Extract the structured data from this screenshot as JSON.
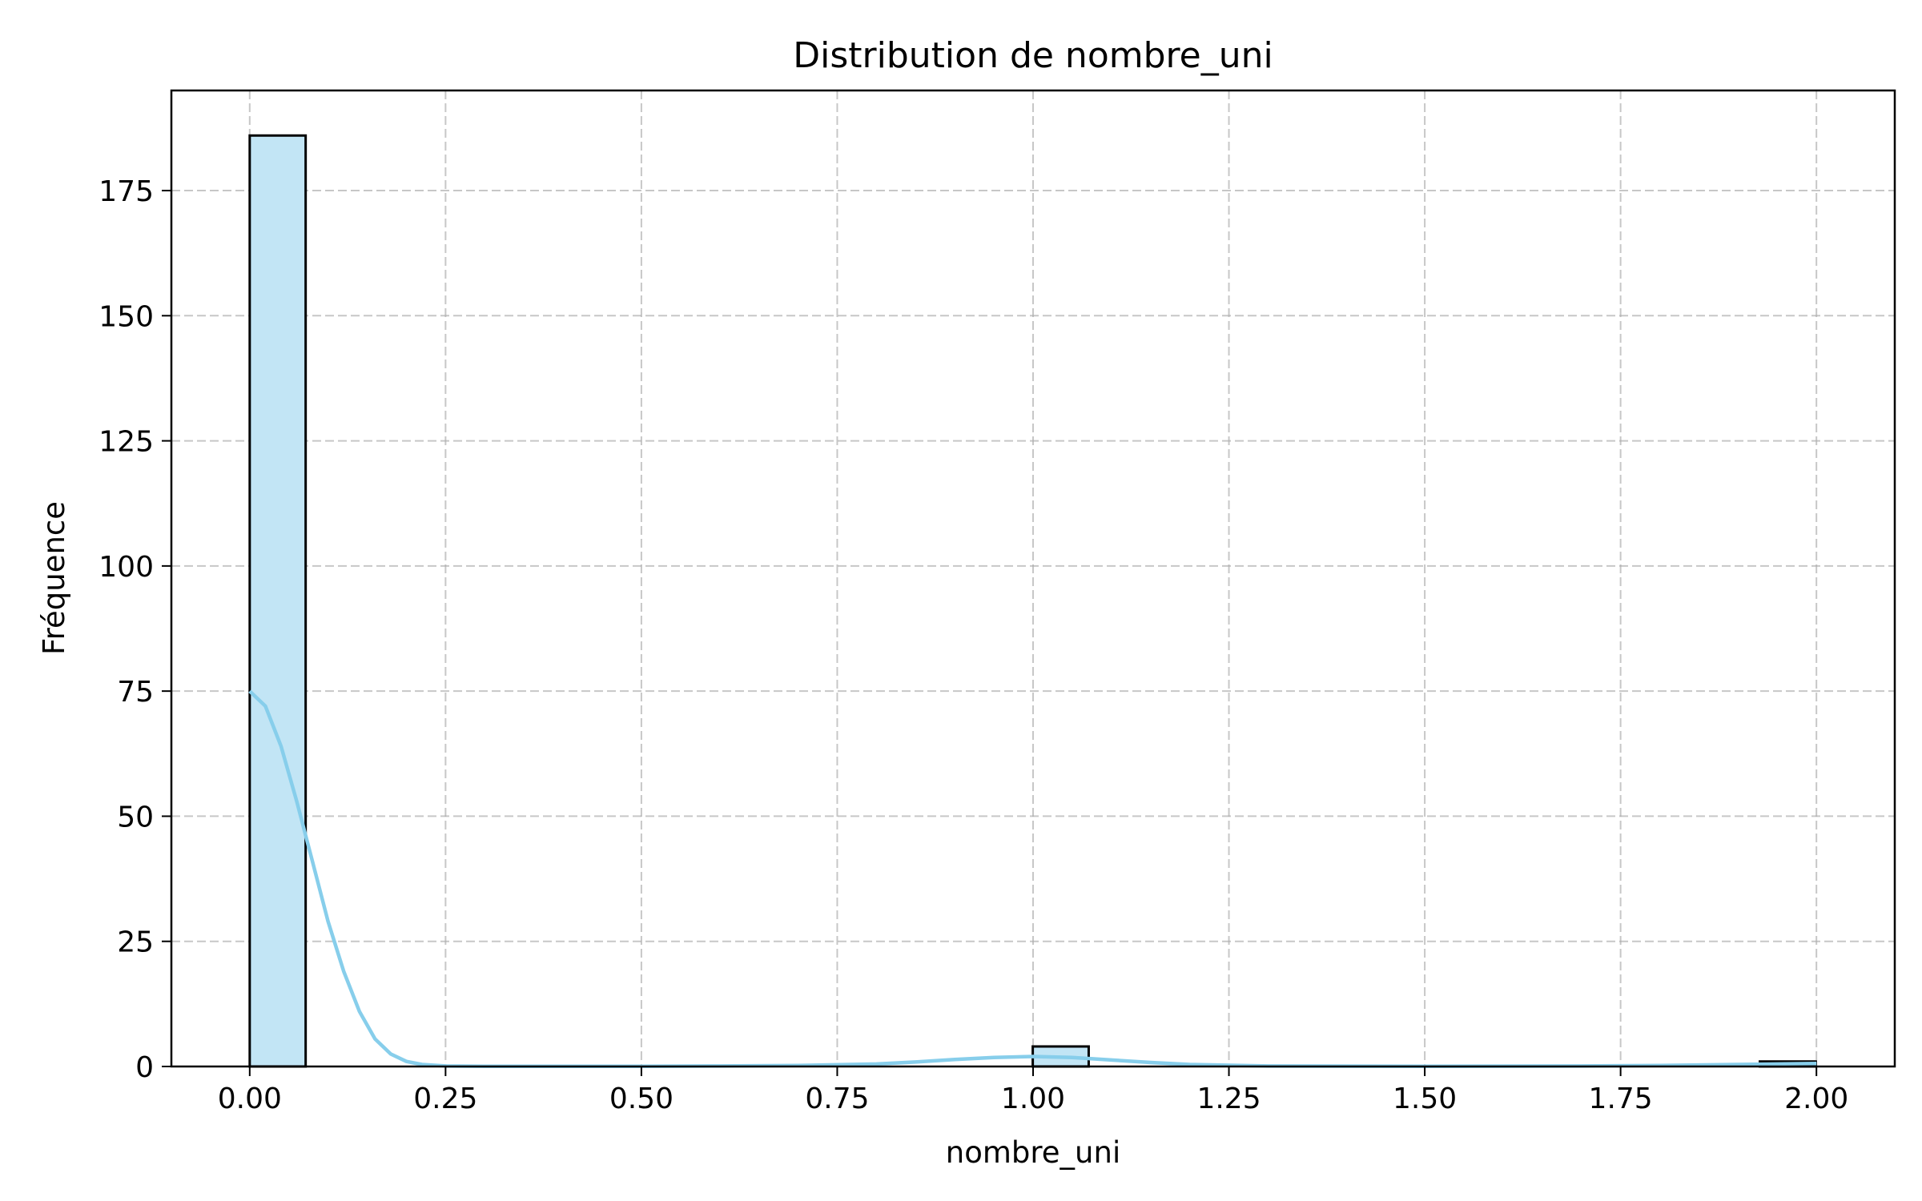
{
  "chart_data": {
    "type": "bar",
    "title": "Distribution de nombre_uni",
    "xlabel": "nombre_uni",
    "ylabel": "Fréquence",
    "xlim": [
      -0.1,
      2.1
    ],
    "ylim": [
      0,
      195
    ],
    "xticks": [
      0.0,
      0.25,
      0.5,
      0.75,
      1.0,
      1.25,
      1.5,
      1.75,
      2.0
    ],
    "xtick_labels": [
      "0.00",
      "0.25",
      "0.50",
      "0.75",
      "1.00",
      "1.25",
      "1.50",
      "1.75",
      "2.00"
    ],
    "yticks": [
      0,
      25,
      50,
      75,
      100,
      125,
      150,
      175
    ],
    "ytick_labels": [
      "0",
      "25",
      "50",
      "75",
      "100",
      "125",
      "150",
      "175"
    ],
    "grid": true,
    "bins": {
      "start": 0.0,
      "width": 0.0714,
      "counts": [
        186,
        0,
        0,
        0,
        0,
        0,
        0,
        0,
        0,
        0,
        0,
        0,
        0,
        0,
        4,
        0,
        0,
        0,
        0,
        0,
        0,
        0,
        0,
        0,
        0,
        0,
        0,
        1
      ]
    },
    "kde": {
      "x": [
        0.0,
        0.02,
        0.04,
        0.06,
        0.08,
        0.1,
        0.12,
        0.14,
        0.16,
        0.18,
        0.2,
        0.22,
        0.25,
        0.3,
        0.4,
        0.5,
        0.6,
        0.7,
        0.8,
        0.85,
        0.9,
        0.95,
        1.0,
        1.05,
        1.1,
        1.15,
        1.2,
        1.3,
        1.5,
        1.7,
        1.8,
        1.9,
        1.95,
        2.0
      ],
      "y": [
        75,
        72,
        64,
        53,
        41,
        29,
        19,
        11,
        5.5,
        2.5,
        1.0,
        0.4,
        0.1,
        0.05,
        0.05,
        0.05,
        0.1,
        0.2,
        0.5,
        0.9,
        1.4,
        1.8,
        2.0,
        1.8,
        1.3,
        0.8,
        0.4,
        0.1,
        0.05,
        0.1,
        0.2,
        0.4,
        0.5,
        0.6
      ]
    },
    "colors": {
      "bar_fill": "#c2e5f5",
      "bar_edge": "#000000",
      "kde_line": "#87ceeb"
    }
  }
}
